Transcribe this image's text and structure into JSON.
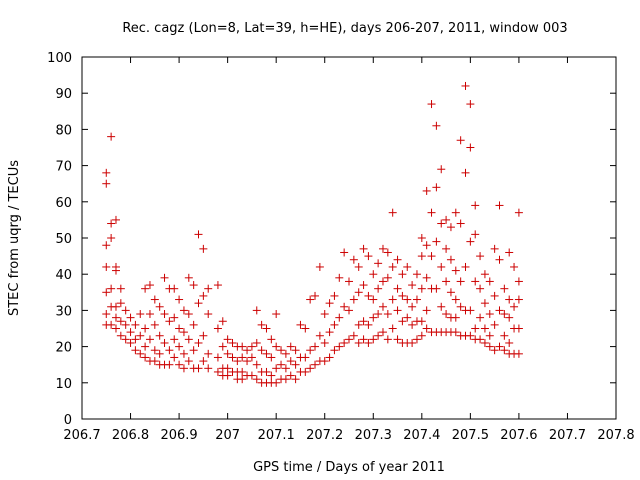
{
  "chart_data": {
    "type": "scatter",
    "title": "Rec. cagz (Lon=8, Lat=39, h=HE), days 206-207, 2011, window 003",
    "xlabel": "GPS time / Days of year 2011",
    "ylabel": "STEC from uqrg / TECUs",
    "xlim": [
      206.7,
      207.8
    ],
    "ylim": [
      0,
      100
    ],
    "xticks": [
      "206.7",
      "206.8",
      "206.9",
      "207",
      "207.1",
      "207.2",
      "207.3",
      "207.4",
      "207.5",
      "207.6",
      "207.7",
      "207.8"
    ],
    "yticks": [
      "0",
      "10",
      "20",
      "30",
      "40",
      "50",
      "60",
      "70",
      "80",
      "90",
      "100"
    ],
    "grid": false,
    "legend": "none",
    "marker": "plus",
    "color": "#cc0000",
    "points": [
      [
        206.75,
        68
      ],
      [
        206.75,
        65
      ],
      [
        206.75,
        48
      ],
      [
        206.75,
        42
      ],
      [
        206.75,
        35
      ],
      [
        206.75,
        29
      ],
      [
        206.75,
        26
      ],
      [
        206.76,
        78
      ],
      [
        206.76,
        54
      ],
      [
        206.76,
        50
      ],
      [
        206.76,
        36
      ],
      [
        206.76,
        31
      ],
      [
        206.76,
        26
      ],
      [
        206.77,
        55
      ],
      [
        206.77,
        42
      ],
      [
        206.77,
        41
      ],
      [
        206.77,
        31
      ],
      [
        206.77,
        28
      ],
      [
        206.77,
        25
      ],
      [
        206.78,
        36
      ],
      [
        206.78,
        32
      ],
      [
        206.78,
        27
      ],
      [
        206.78,
        23
      ],
      [
        206.79,
        30
      ],
      [
        206.79,
        26
      ],
      [
        206.79,
        22
      ],
      [
        206.8,
        28
      ],
      [
        206.8,
        24
      ],
      [
        206.8,
        21
      ],
      [
        206.81,
        26
      ],
      [
        206.81,
        22
      ],
      [
        206.81,
        19
      ],
      [
        206.82,
        29
      ],
      [
        206.82,
        23
      ],
      [
        206.82,
        18
      ],
      [
        206.83,
        36
      ],
      [
        206.83,
        25
      ],
      [
        206.83,
        20
      ],
      [
        206.83,
        17
      ],
      [
        206.84,
        37
      ],
      [
        206.84,
        29
      ],
      [
        206.84,
        22
      ],
      [
        206.84,
        16
      ],
      [
        206.85,
        33
      ],
      [
        206.85,
        26
      ],
      [
        206.85,
        19
      ],
      [
        206.85,
        16
      ],
      [
        206.86,
        31
      ],
      [
        206.86,
        23
      ],
      [
        206.86,
        18
      ],
      [
        206.86,
        15
      ],
      [
        206.87,
        39
      ],
      [
        206.87,
        29
      ],
      [
        206.87,
        21
      ],
      [
        206.87,
        15
      ],
      [
        206.88,
        36
      ],
      [
        206.88,
        27
      ],
      [
        206.88,
        19
      ],
      [
        206.88,
        15
      ],
      [
        206.89,
        36
      ],
      [
        206.89,
        28
      ],
      [
        206.89,
        22
      ],
      [
        206.89,
        17
      ],
      [
        206.9,
        33
      ],
      [
        206.9,
        25
      ],
      [
        206.9,
        20
      ],
      [
        206.9,
        15
      ],
      [
        206.91,
        30
      ],
      [
        206.91,
        24
      ],
      [
        206.91,
        18
      ],
      [
        206.91,
        14
      ],
      [
        206.92,
        39
      ],
      [
        206.92,
        29
      ],
      [
        206.92,
        22
      ],
      [
        206.92,
        16
      ],
      [
        206.93,
        37
      ],
      [
        206.93,
        26
      ],
      [
        206.93,
        19
      ],
      [
        206.93,
        14
      ],
      [
        206.94,
        51
      ],
      [
        206.94,
        32
      ],
      [
        206.94,
        21
      ],
      [
        206.94,
        14
      ],
      [
        206.95,
        47
      ],
      [
        206.95,
        34
      ],
      [
        206.95,
        23
      ],
      [
        206.95,
        16
      ],
      [
        206.96,
        36
      ],
      [
        206.96,
        29
      ],
      [
        206.96,
        18
      ],
      [
        206.96,
        14
      ],
      [
        206.98,
        37
      ],
      [
        206.98,
        25
      ],
      [
        206.98,
        17
      ],
      [
        206.98,
        13
      ],
      [
        206.99,
        27
      ],
      [
        206.99,
        20
      ],
      [
        206.99,
        14
      ],
      [
        206.99,
        12
      ],
      [
        207.0,
        22
      ],
      [
        207.0,
        18
      ],
      [
        207.0,
        14
      ],
      [
        207.0,
        12
      ],
      [
        207.01,
        21
      ],
      [
        207.01,
        17
      ],
      [
        207.01,
        13
      ],
      [
        207.02,
        20
      ],
      [
        207.02,
        16
      ],
      [
        207.02,
        13
      ],
      [
        207.02,
        11
      ],
      [
        207.03,
        20
      ],
      [
        207.03,
        17
      ],
      [
        207.03,
        13
      ],
      [
        207.03,
        11
      ],
      [
        207.04,
        19
      ],
      [
        207.04,
        16
      ],
      [
        207.04,
        12
      ],
      [
        207.05,
        20
      ],
      [
        207.05,
        17
      ],
      [
        207.05,
        12
      ],
      [
        207.06,
        30
      ],
      [
        207.06,
        21
      ],
      [
        207.06,
        15
      ],
      [
        207.06,
        11
      ],
      [
        207.07,
        26
      ],
      [
        207.07,
        19
      ],
      [
        207.07,
        13
      ],
      [
        207.07,
        10
      ],
      [
        207.08,
        25
      ],
      [
        207.08,
        18
      ],
      [
        207.08,
        13
      ],
      [
        207.08,
        10
      ],
      [
        207.09,
        22
      ],
      [
        207.09,
        17
      ],
      [
        207.09,
        12
      ],
      [
        207.09,
        10
      ],
      [
        207.1,
        29
      ],
      [
        207.1,
        20
      ],
      [
        207.1,
        14
      ],
      [
        207.1,
        10
      ],
      [
        207.11,
        19
      ],
      [
        207.11,
        15
      ],
      [
        207.11,
        11
      ],
      [
        207.12,
        18
      ],
      [
        207.12,
        14
      ],
      [
        207.12,
        11
      ],
      [
        207.13,
        20
      ],
      [
        207.13,
        16
      ],
      [
        207.13,
        12
      ],
      [
        207.14,
        19
      ],
      [
        207.14,
        15
      ],
      [
        207.14,
        11
      ],
      [
        207.15,
        26
      ],
      [
        207.15,
        17
      ],
      [
        207.15,
        13
      ],
      [
        207.16,
        25
      ],
      [
        207.16,
        17
      ],
      [
        207.16,
        13
      ],
      [
        207.17,
        33
      ],
      [
        207.17,
        19
      ],
      [
        207.17,
        14
      ],
      [
        207.18,
        34
      ],
      [
        207.18,
        20
      ],
      [
        207.18,
        15
      ],
      [
        207.19,
        42
      ],
      [
        207.19,
        23
      ],
      [
        207.19,
        16
      ],
      [
        207.2,
        29
      ],
      [
        207.2,
        21
      ],
      [
        207.2,
        16
      ],
      [
        207.21,
        32
      ],
      [
        207.21,
        24
      ],
      [
        207.21,
        17
      ],
      [
        207.22,
        34
      ],
      [
        207.22,
        26
      ],
      [
        207.22,
        19
      ],
      [
        207.23,
        39
      ],
      [
        207.23,
        28
      ],
      [
        207.23,
        20
      ],
      [
        207.24,
        46
      ],
      [
        207.24,
        31
      ],
      [
        207.24,
        21
      ],
      [
        207.25,
        38
      ],
      [
        207.25,
        30
      ],
      [
        207.25,
        22
      ],
      [
        207.26,
        44
      ],
      [
        207.26,
        33
      ],
      [
        207.26,
        23
      ],
      [
        207.27,
        42
      ],
      [
        207.27,
        35
      ],
      [
        207.27,
        26
      ],
      [
        207.27,
        21
      ],
      [
        207.28,
        47
      ],
      [
        207.28,
        37
      ],
      [
        207.28,
        27
      ],
      [
        207.28,
        22
      ],
      [
        207.29,
        45
      ],
      [
        207.29,
        34
      ],
      [
        207.29,
        26
      ],
      [
        207.29,
        21
      ],
      [
        207.3,
        40
      ],
      [
        207.3,
        33
      ],
      [
        207.3,
        28
      ],
      [
        207.3,
        22
      ],
      [
        207.31,
        43
      ],
      [
        207.31,
        36
      ],
      [
        207.31,
        29
      ],
      [
        207.31,
        23
      ],
      [
        207.32,
        47
      ],
      [
        207.32,
        38
      ],
      [
        207.32,
        31
      ],
      [
        207.32,
        24
      ],
      [
        207.33,
        46
      ],
      [
        207.33,
        39
      ],
      [
        207.33,
        29
      ],
      [
        207.33,
        22
      ],
      [
        207.34,
        57
      ],
      [
        207.34,
        42
      ],
      [
        207.34,
        33
      ],
      [
        207.34,
        25
      ],
      [
        207.35,
        44
      ],
      [
        207.35,
        36
      ],
      [
        207.35,
        30
      ],
      [
        207.35,
        22
      ],
      [
        207.36,
        40
      ],
      [
        207.36,
        34
      ],
      [
        207.36,
        27
      ],
      [
        207.36,
        21
      ],
      [
        207.37,
        42
      ],
      [
        207.37,
        33
      ],
      [
        207.37,
        28
      ],
      [
        207.37,
        21
      ],
      [
        207.38,
        37
      ],
      [
        207.38,
        31
      ],
      [
        207.38,
        26
      ],
      [
        207.38,
        21
      ],
      [
        207.39,
        40
      ],
      [
        207.39,
        33
      ],
      [
        207.39,
        27
      ],
      [
        207.39,
        22
      ],
      [
        207.4,
        50
      ],
      [
        207.4,
        45
      ],
      [
        207.4,
        36
      ],
      [
        207.4,
        27
      ],
      [
        207.4,
        23
      ],
      [
        207.41,
        63
      ],
      [
        207.41,
        48
      ],
      [
        207.41,
        39
      ],
      [
        207.41,
        30
      ],
      [
        207.41,
        25
      ],
      [
        207.42,
        87
      ],
      [
        207.42,
        57
      ],
      [
        207.42,
        45
      ],
      [
        207.42,
        36
      ],
      [
        207.42,
        24
      ],
      [
        207.43,
        81
      ],
      [
        207.43,
        64
      ],
      [
        207.43,
        49
      ],
      [
        207.43,
        36
      ],
      [
        207.43,
        24
      ],
      [
        207.44,
        69
      ],
      [
        207.44,
        54
      ],
      [
        207.44,
        42
      ],
      [
        207.44,
        31
      ],
      [
        207.44,
        24
      ],
      [
        207.45,
        55
      ],
      [
        207.45,
        47
      ],
      [
        207.45,
        38
      ],
      [
        207.45,
        29
      ],
      [
        207.45,
        24
      ],
      [
        207.46,
        53
      ],
      [
        207.46,
        44
      ],
      [
        207.46,
        35
      ],
      [
        207.46,
        28
      ],
      [
        207.46,
        24
      ],
      [
        207.47,
        57
      ],
      [
        207.47,
        41
      ],
      [
        207.47,
        33
      ],
      [
        207.47,
        28
      ],
      [
        207.47,
        24
      ],
      [
        207.48,
        77
      ],
      [
        207.48,
        54
      ],
      [
        207.48,
        38
      ],
      [
        207.48,
        31
      ],
      [
        207.48,
        23
      ],
      [
        207.49,
        92
      ],
      [
        207.49,
        68
      ],
      [
        207.49,
        42
      ],
      [
        207.49,
        30
      ],
      [
        207.49,
        23
      ],
      [
        207.5,
        87
      ],
      [
        207.5,
        75
      ],
      [
        207.5,
        49
      ],
      [
        207.5,
        30
      ],
      [
        207.5,
        23
      ],
      [
        207.51,
        59
      ],
      [
        207.51,
        51
      ],
      [
        207.51,
        38
      ],
      [
        207.51,
        25
      ],
      [
        207.51,
        22
      ],
      [
        207.52,
        45
      ],
      [
        207.52,
        36
      ],
      [
        207.52,
        28
      ],
      [
        207.52,
        22
      ],
      [
        207.53,
        40
      ],
      [
        207.53,
        32
      ],
      [
        207.53,
        25
      ],
      [
        207.53,
        21
      ],
      [
        207.54,
        38
      ],
      [
        207.54,
        29
      ],
      [
        207.54,
        23
      ],
      [
        207.54,
        20
      ],
      [
        207.55,
        47
      ],
      [
        207.55,
        34
      ],
      [
        207.55,
        26
      ],
      [
        207.55,
        19
      ],
      [
        207.56,
        59
      ],
      [
        207.56,
        44
      ],
      [
        207.56,
        30
      ],
      [
        207.56,
        20
      ],
      [
        207.57,
        36
      ],
      [
        207.57,
        29
      ],
      [
        207.57,
        23
      ],
      [
        207.57,
        19
      ],
      [
        207.58,
        46
      ],
      [
        207.58,
        33
      ],
      [
        207.58,
        28
      ],
      [
        207.58,
        21
      ],
      [
        207.58,
        18
      ],
      [
        207.59,
        42
      ],
      [
        207.59,
        31
      ],
      [
        207.59,
        25
      ],
      [
        207.59,
        18
      ],
      [
        207.6,
        57
      ],
      [
        207.6,
        38
      ],
      [
        207.6,
        33
      ],
      [
        207.6,
        25
      ],
      [
        207.6,
        18
      ]
    ]
  }
}
